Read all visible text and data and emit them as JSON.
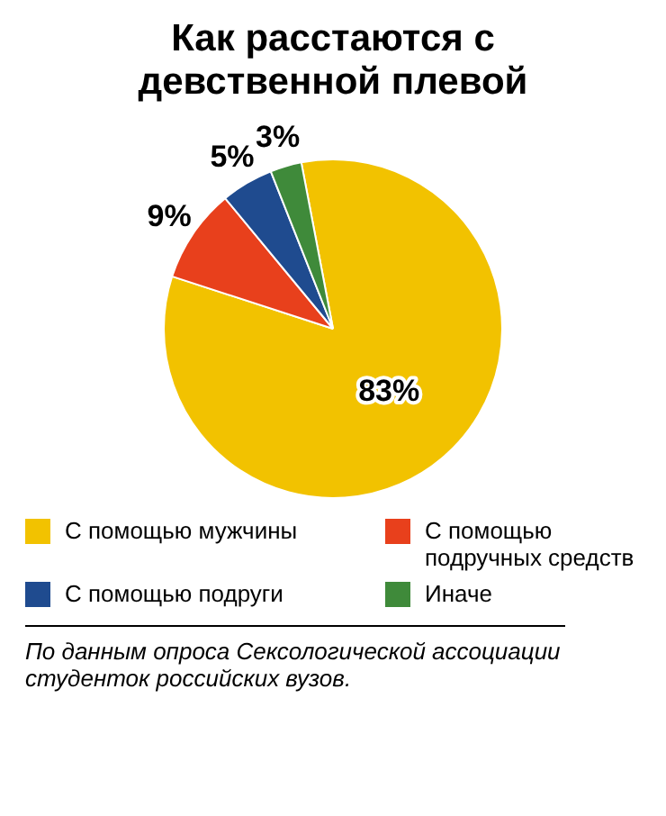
{
  "chart_data": {
    "type": "pie",
    "title": "Как расстаются с девственной плевой",
    "categories": [
      "С помощью мужчины",
      "С помощью подручных средств",
      "С помощью подруги",
      "Иначе"
    ],
    "values": [
      83,
      9,
      5,
      3
    ],
    "colors": [
      "#f2c200",
      "#e8401c",
      "#1f4b8f",
      "#3f8a3a"
    ],
    "value_labels": [
      "83%",
      "9%",
      "5%",
      "3%"
    ],
    "legend": "bottom",
    "annotations": [
      "По данным опроса Сексологической ассоциации студенток российских вузов."
    ]
  }
}
